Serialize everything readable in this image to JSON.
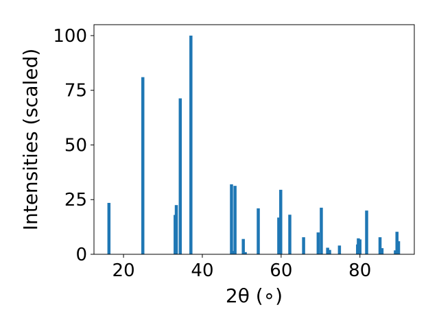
{
  "chart_data": {
    "type": "bar",
    "title": "",
    "xlabel": "2θ (∘)",
    "ylabel": "Intensities (scaled)",
    "xlim": [
      12.5,
      93.8
    ],
    "ylim": [
      0,
      105
    ],
    "x_ticks": [
      20,
      40,
      60,
      80
    ],
    "y_ticks": [
      0,
      25,
      50,
      75,
      100
    ],
    "grid": false,
    "bar_color": "#1f77b4",
    "bars": [
      {
        "x": 16.3,
        "y": 23.5
      },
      {
        "x": 24.9,
        "y": 81.0
      },
      {
        "x": 33.1,
        "y": 18.0
      },
      {
        "x": 33.4,
        "y": 22.5
      },
      {
        "x": 34.4,
        "y": 71.3
      },
      {
        "x": 37.1,
        "y": 100.0
      },
      {
        "x": 47.4,
        "y": 32.0
      },
      {
        "x": 48.0,
        "y": 1.5
      },
      {
        "x": 48.3,
        "y": 31.3
      },
      {
        "x": 50.4,
        "y": 7.0
      },
      {
        "x": 50.9,
        "y": 1.0
      },
      {
        "x": 54.2,
        "y": 21.0
      },
      {
        "x": 59.4,
        "y": 16.8
      },
      {
        "x": 59.9,
        "y": 29.5
      },
      {
        "x": 62.2,
        "y": 18.1
      },
      {
        "x": 65.7,
        "y": 7.8
      },
      {
        "x": 69.4,
        "y": 10.0
      },
      {
        "x": 70.2,
        "y": 21.3
      },
      {
        "x": 71.8,
        "y": 3.0
      },
      {
        "x": 72.3,
        "y": 2.0
      },
      {
        "x": 74.8,
        "y": 4.0
      },
      {
        "x": 79.4,
        "y": 4.5
      },
      {
        "x": 79.6,
        "y": 7.3
      },
      {
        "x": 80.0,
        "y": 6.8
      },
      {
        "x": 81.7,
        "y": 20.0
      },
      {
        "x": 85.1,
        "y": 7.8
      },
      {
        "x": 85.6,
        "y": 2.8
      },
      {
        "x": 89.0,
        "y": 1.8
      },
      {
        "x": 89.4,
        "y": 10.3
      },
      {
        "x": 89.8,
        "y": 6.0
      }
    ]
  }
}
